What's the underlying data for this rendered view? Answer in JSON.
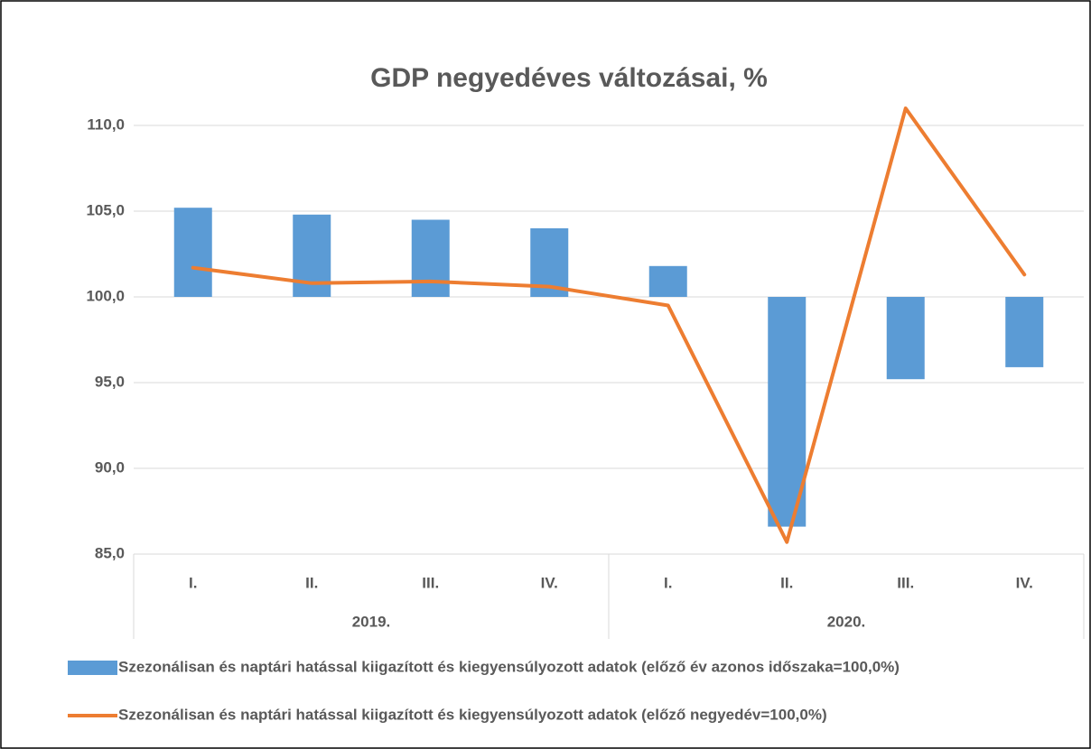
{
  "chart_data": {
    "type": "bar_line",
    "title": "GDP negyedéves változásai, %",
    "categories": [
      "I.",
      "II.",
      "III.",
      "IV.",
      "I.",
      "II.",
      "III.",
      "IV."
    ],
    "groups": [
      {
        "label": "2019.",
        "size": 4
      },
      {
        "label": "2020.",
        "size": 4
      }
    ],
    "series": [
      {
        "name": "Szezonálisan és naptári hatással kiigazított és kiegyensúlyozott adatok (előző év azonos időszaka=100,0%)",
        "type": "bar",
        "color": "#5b9bd5",
        "values": [
          105.2,
          104.8,
          104.5,
          104.0,
          101.8,
          86.6,
          95.2,
          95.9
        ]
      },
      {
        "name": "Szezonálisan és naptári hatással kiigazított és kiegyensúlyozott adatok (előző negyedév=100,0%)",
        "type": "line",
        "color": "#ed7d31",
        "values": [
          101.7,
          100.8,
          100.9,
          100.6,
          99.5,
          85.7,
          111.0,
          101.3
        ]
      }
    ],
    "ylim": [
      85,
      110
    ],
    "yticks": [
      {
        "value": 85,
        "label": "85,0"
      },
      {
        "value": 90,
        "label": "90,0"
      },
      {
        "value": 95,
        "label": "95,0"
      },
      {
        "value": 100,
        "label": "100,0"
      },
      {
        "value": 105,
        "label": "105,0"
      },
      {
        "value": 110,
        "label": "110,0"
      }
    ],
    "xaxis_crosses": 100,
    "grid": true,
    "legend": "bottom"
  }
}
